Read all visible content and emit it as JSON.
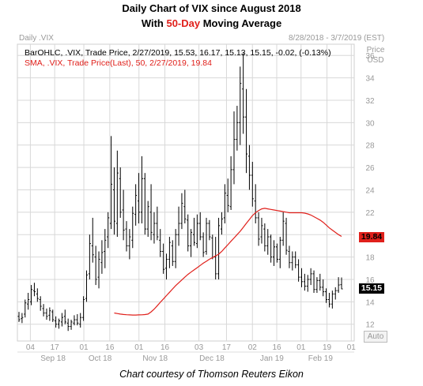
{
  "title": {
    "line1": "Daily Chart of VIX since August 2018",
    "line2_prefix": "With ",
    "line2_highlight": "50-Day",
    "line2_suffix": " Moving Average"
  },
  "header": {
    "symbol": "Daily .VIX",
    "range": "8/28/2018 - 3/7/2019 (EST)",
    "price_unit1": "Price",
    "price_unit2": "USD"
  },
  "legend": {
    "ohlc": "BarOHLC, .VIX, Trade Price, 2/27/2019, 15.53, 16.17, 15.13, 15.15, -0.02, (-0.13%)",
    "sma": "SMA, .VIX, Trade Price(Last), 50, 2/27/2019, 19.84"
  },
  "tags": {
    "sma_value": "19.84",
    "last_price": "15.15"
  },
  "auto_label": "Auto",
  "caption": "Chart courtesy of Thomson Reuters Eikon",
  "colors": {
    "price_bars": "#000000",
    "sma_line": "#e0201b",
    "grid": "#d8d8d8",
    "axis_text": "#999999",
    "highlight": "#e0201b"
  },
  "chart_data": {
    "type": "line",
    "title": "Daily Chart of VIX since August 2018",
    "ylim": [
      10.5,
      37
    ],
    "y_ticks": [
      12,
      14,
      16,
      18,
      20,
      22,
      24,
      26,
      28,
      30,
      32,
      34,
      36
    ],
    "x_day_ticks": [
      "04",
      "17",
      "01",
      "16",
      "01",
      "16",
      "03",
      "17",
      "02",
      "16",
      "01",
      "19",
      "01"
    ],
    "x_month_ticks": [
      "Sep 18",
      "Oct 18",
      "Nov 18",
      "Dec 18",
      "Jan 19",
      "Feb 19"
    ],
    "grid": true,
    "ohlc_bars": [
      [
        12.7,
        13.1,
        12.2,
        12.4
      ],
      [
        12.5,
        13.0,
        12.1,
        12.6
      ],
      [
        12.9,
        14.2,
        12.6,
        13.9
      ],
      [
        13.8,
        14.8,
        13.3,
        14.2
      ],
      [
        14.0,
        15.5,
        13.7,
        15.1
      ],
      [
        15.0,
        15.7,
        14.5,
        14.9
      ],
      [
        14.7,
        15.2,
        14.0,
        14.3
      ],
      [
        14.2,
        14.5,
        13.2,
        13.6
      ],
      [
        13.4,
        13.8,
        12.7,
        13.0
      ],
      [
        13.0,
        13.4,
        12.4,
        12.7
      ],
      [
        12.8,
        13.5,
        12.3,
        13.2
      ],
      [
        13.1,
        13.3,
        12.2,
        12.4
      ],
      [
        12.3,
        12.7,
        11.7,
        12.0
      ],
      [
        12.0,
        12.5,
        11.6,
        12.3
      ],
      [
        12.2,
        13.0,
        11.8,
        12.6
      ],
      [
        12.7,
        13.3,
        12.0,
        12.2
      ],
      [
        12.1,
        12.5,
        11.4,
        11.8
      ],
      [
        11.8,
        12.4,
        11.5,
        12.2
      ],
      [
        12.1,
        12.8,
        11.9,
        12.4
      ],
      [
        12.4,
        12.9,
        11.9,
        12.1
      ],
      [
        12.0,
        13.0,
        11.7,
        12.6
      ],
      [
        12.6,
        14.5,
        12.3,
        14.2
      ],
      [
        14.3,
        16.8,
        14.0,
        16.4
      ],
      [
        16.5,
        20.0,
        16.0,
        19.2
      ],
      [
        19.0,
        21.5,
        17.5,
        18.2
      ],
      [
        18.0,
        19.0,
        15.5,
        16.0
      ],
      [
        16.2,
        18.5,
        15.2,
        17.8
      ],
      [
        17.5,
        19.5,
        16.5,
        18.4
      ],
      [
        18.5,
        20.5,
        17.0,
        19.5
      ],
      [
        19.8,
        22.0,
        18.8,
        21.5
      ],
      [
        21.0,
        28.8,
        20.5,
        24.5
      ],
      [
        24.0,
        26.0,
        20.0,
        21.2
      ],
      [
        21.0,
        27.5,
        19.8,
        25.5
      ],
      [
        25.0,
        26.0,
        21.5,
        22.0
      ],
      [
        22.2,
        24.0,
        19.5,
        20.4
      ],
      [
        20.5,
        21.2,
        18.5,
        19.0
      ],
      [
        19.0,
        20.5,
        17.8,
        19.8
      ],
      [
        19.5,
        22.5,
        18.8,
        21.9
      ],
      [
        21.8,
        24.5,
        20.8,
        23.5
      ],
      [
        23.0,
        25.5,
        21.0,
        22.0
      ],
      [
        22.0,
        27.0,
        21.0,
        25.0
      ],
      [
        25.0,
        25.5,
        20.0,
        20.5
      ],
      [
        20.5,
        23.0,
        19.8,
        22.5
      ],
      [
        22.0,
        24.5,
        19.5,
        20.2
      ],
      [
        20.0,
        22.0,
        19.2,
        21.0
      ],
      [
        21.0,
        22.5,
        19.5,
        19.8
      ],
      [
        19.5,
        20.5,
        18.0,
        18.5
      ],
      [
        18.5,
        19.2,
        16.5,
        16.9
      ],
      [
        17.0,
        18.3,
        16.0,
        17.8
      ],
      [
        17.8,
        19.8,
        17.0,
        19.3
      ],
      [
        19.0,
        19.5,
        17.2,
        17.6
      ],
      [
        17.6,
        20.5,
        17.0,
        20.0
      ],
      [
        20.0,
        22.5,
        19.0,
        21.0
      ],
      [
        21.0,
        23.7,
        20.5,
        22.8
      ],
      [
        22.5,
        24.0,
        21.0,
        21.4
      ],
      [
        21.3,
        21.8,
        18.5,
        19.0
      ],
      [
        19.0,
        20.5,
        18.0,
        20.2
      ],
      [
        20.0,
        21.5,
        19.0,
        19.3
      ],
      [
        19.2,
        21.8,
        18.8,
        21.0
      ],
      [
        21.0,
        22.0,
        19.5,
        19.8
      ],
      [
        19.8,
        20.2,
        18.0,
        18.4
      ],
      [
        18.5,
        21.5,
        18.2,
        21.0
      ],
      [
        21.0,
        21.3,
        19.5,
        19.8
      ],
      [
        19.7,
        20.0,
        17.8,
        18.0
      ],
      [
        18.0,
        19.8,
        16.0,
        16.5
      ],
      [
        16.5,
        21.5,
        16.0,
        20.8
      ],
      [
        20.5,
        22.0,
        20.0,
        21.4
      ],
      [
        21.5,
        24.5,
        21.0,
        23.7
      ],
      [
        23.5,
        25.0,
        22.0,
        22.6
      ],
      [
        22.5,
        27.0,
        22.2,
        25.8
      ],
      [
        25.8,
        31.0,
        24.5,
        28.5
      ],
      [
        28.5,
        31.5,
        27.5,
        30.0
      ],
      [
        30.0,
        35.0,
        28.0,
        33.5
      ],
      [
        33.0,
        36.2,
        29.0,
        30.5
      ],
      [
        30.5,
        33.0,
        25.5,
        27.2
      ],
      [
        27.0,
        28.0,
        24.0,
        25.3
      ],
      [
        25.3,
        26.5,
        22.5,
        23.2
      ],
      [
        23.0,
        24.5,
        21.0,
        21.5
      ],
      [
        21.5,
        22.0,
        19.0,
        19.6
      ],
      [
        19.8,
        21.5,
        19.2,
        20.8
      ],
      [
        20.5,
        21.0,
        18.5,
        19.0
      ],
      [
        19.0,
        20.5,
        18.2,
        19.8
      ],
      [
        19.8,
        20.0,
        17.5,
        18.0
      ],
      [
        18.0,
        19.5,
        17.2,
        18.9
      ],
      [
        18.9,
        19.2,
        17.5,
        17.8
      ],
      [
        17.8,
        19.8,
        17.0,
        19.5
      ],
      [
        19.5,
        22.0,
        19.0,
        21.2
      ],
      [
        21.0,
        21.5,
        18.2,
        18.6
      ],
      [
        18.5,
        19.0,
        17.0,
        17.5
      ],
      [
        17.5,
        18.5,
        16.8,
        18.0
      ],
      [
        18.0,
        18.5,
        17.0,
        17.3
      ],
      [
        17.3,
        17.8,
        15.8,
        16.2
      ],
      [
        16.2,
        17.0,
        15.3,
        15.8
      ],
      [
        15.8,
        16.5,
        15.0,
        15.4
      ],
      [
        15.4,
        16.4,
        14.9,
        16.0
      ],
      [
        16.0,
        17.0,
        15.5,
        16.5
      ],
      [
        16.5,
        16.8,
        14.8,
        15.1
      ],
      [
        15.1,
        16.2,
        14.8,
        15.9
      ],
      [
        15.9,
        16.5,
        15.0,
        15.3
      ],
      [
        15.3,
        16.0,
        14.5,
        14.9
      ],
      [
        14.9,
        15.2,
        13.9,
        14.2
      ],
      [
        14.2,
        14.8,
        13.5,
        13.8
      ],
      [
        13.8,
        15.0,
        13.4,
        14.7
      ],
      [
        14.7,
        15.3,
        14.2,
        15.0
      ],
      [
        15.0,
        16.2,
        14.8,
        15.5
      ],
      [
        15.53,
        16.17,
        15.13,
        15.15
      ]
    ],
    "sma_50": [
      13.0,
      12.95,
      12.9,
      12.87,
      12.85,
      12.83,
      12.82,
      12.82,
      12.83,
      12.84,
      12.86,
      12.9,
      13.1,
      13.35,
      13.65,
      13.95,
      14.25,
      14.55,
      14.85,
      15.15,
      15.45,
      15.7,
      15.95,
      16.2,
      16.45,
      16.65,
      16.85,
      17.05,
      17.25,
      17.45,
      17.62,
      17.8,
      17.95,
      18.1,
      18.25,
      18.5,
      18.8,
      19.1,
      19.4,
      19.7,
      20.0,
      20.3,
      20.65,
      21.0,
      21.35,
      21.7,
      21.95,
      22.15,
      22.3,
      22.35,
      22.3,
      22.25,
      22.2,
      22.15,
      22.1,
      22.05,
      22.0,
      21.95,
      21.95,
      21.95,
      21.95,
      21.95,
      21.92,
      21.85,
      21.75,
      21.6,
      21.45,
      21.3,
      21.1,
      20.85,
      20.6,
      20.4,
      20.2,
      20.0,
      19.84
    ]
  }
}
